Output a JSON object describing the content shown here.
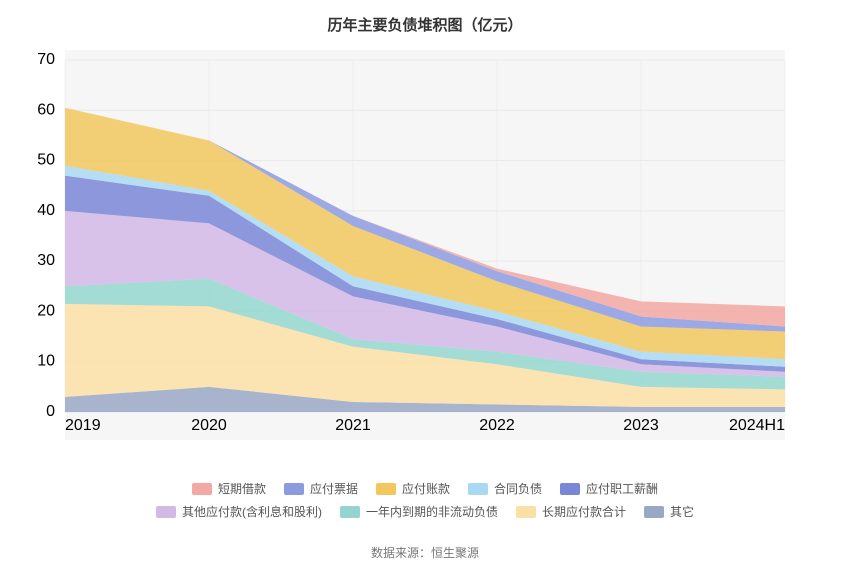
{
  "chart": {
    "type": "stacked-area",
    "title": "历年主要负债堆积图（亿元）",
    "title_fontsize": 15,
    "title_color": "#333333",
    "background_color": "#ffffff",
    "plot_background_color": "#f6f6f6",
    "grid_color": "#e9e9e9",
    "axis_label_color": "#888888",
    "axis_label_fontsize": 11,
    "categories": [
      "2019",
      "2020",
      "2021",
      "2022",
      "2023",
      "2024H1"
    ],
    "ylim": [
      0,
      70
    ],
    "ytick_step": 10,
    "series": [
      {
        "name": "其它",
        "color": "#9aa8c7",
        "values": [
          3.0,
          5.0,
          2.0,
          1.5,
          1.0,
          1.0
        ]
      },
      {
        "name": "长期应付款合计",
        "color": "#fbe0a6",
        "values": [
          18.5,
          16.0,
          11.0,
          8.0,
          4.0,
          3.5
        ]
      },
      {
        "name": "一年内到期的非流动负债",
        "color": "#94d6cf",
        "values": [
          3.5,
          5.5,
          1.5,
          2.5,
          3.0,
          2.5
        ]
      },
      {
        "name": "其他应付款(含利息和股利)",
        "color": "#d3b9e6",
        "values": [
          15.0,
          11.0,
          8.5,
          5.0,
          1.5,
          1.0
        ]
      },
      {
        "name": "应付职工薪酬",
        "color": "#7a86d6",
        "values": [
          7.0,
          5.5,
          2.0,
          1.5,
          1.0,
          1.0
        ]
      },
      {
        "name": "合同负债",
        "color": "#a9d8f2",
        "values": [
          2.0,
          1.0,
          2.0,
          1.5,
          1.5,
          1.5
        ]
      },
      {
        "name": "应付账款",
        "color": "#f1c75e",
        "values": [
          11.5,
          10.0,
          10.0,
          6.0,
          5.0,
          5.5
        ]
      },
      {
        "name": "应付票据",
        "color": "#8c9be0",
        "values": [
          0.0,
          0.0,
          2.0,
          2.0,
          2.0,
          1.0
        ]
      },
      {
        "name": "短期借款",
        "color": "#f2a8a3",
        "values": [
          0.0,
          0.0,
          0.0,
          0.5,
          3.0,
          4.0
        ]
      }
    ],
    "legend": {
      "fontsize": 12,
      "text_color": "#555555",
      "rows": [
        [
          "短期借款",
          "应付票据",
          "应付账款",
          "合同负债",
          "应付职工薪酬"
        ],
        [
          "其他应付款(含利息和股利)",
          "一年内到期的非流动负债",
          "长期应付款合计",
          "其它"
        ]
      ]
    },
    "source_label": "数据来源：恒生聚源",
    "source_fontsize": 12,
    "source_color": "#777777"
  }
}
